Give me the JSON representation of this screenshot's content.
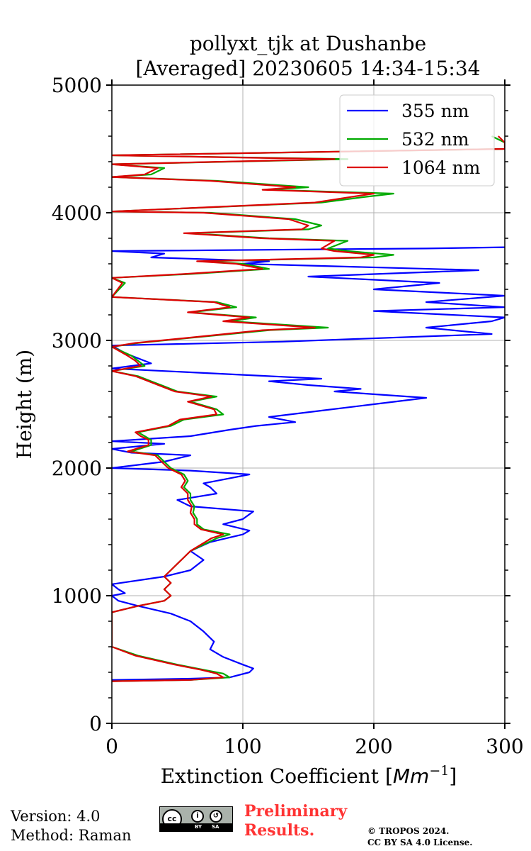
{
  "chart_data": {
    "type": "line",
    "title_line1": "pollyxt_tjk at Dushanbe",
    "title_line2": "[Averaged] 20230605 14:34-15:34",
    "xlabel_text": "Extinction Coefficient [",
    "xlabel_unit": "Mm",
    "xlabel_exp": "−1",
    "xlabel_close": "]",
    "ylabel": "Height (m)",
    "xlim": [
      0,
      300
    ],
    "ylim": [
      0,
      5000
    ],
    "xticks": [
      0,
      100,
      200,
      300
    ],
    "yticks": [
      0,
      1000,
      2000,
      3000,
      4000,
      5000
    ],
    "grid": true,
    "legend_position": "top-right",
    "series": [
      {
        "name": "355 nm",
        "color": "#0000ff",
        "points": [
          [
            0,
            340
          ],
          [
            60,
            350
          ],
          [
            90,
            360
          ],
          [
            105,
            400
          ],
          [
            108,
            430
          ],
          [
            100,
            460
          ],
          [
            85,
            520
          ],
          [
            75,
            580
          ],
          [
            78,
            640
          ],
          [
            70,
            720
          ],
          [
            60,
            800
          ],
          [
            45,
            860
          ],
          [
            20,
            920
          ],
          [
            5,
            960
          ],
          [
            0,
            1000
          ],
          [
            10,
            1020
          ],
          [
            5,
            1050
          ],
          [
            0,
            1090
          ],
          [
            40,
            1150
          ],
          [
            60,
            1200
          ],
          [
            70,
            1280
          ],
          [
            60,
            1350
          ],
          [
            75,
            1420
          ],
          [
            100,
            1480
          ],
          [
            105,
            1510
          ],
          [
            85,
            1560
          ],
          [
            100,
            1600
          ],
          [
            108,
            1660
          ],
          [
            60,
            1700
          ],
          [
            50,
            1750
          ],
          [
            80,
            1800
          ],
          [
            75,
            1850
          ],
          [
            70,
            1880
          ],
          [
            90,
            1920
          ],
          [
            105,
            1950
          ],
          [
            60,
            1980
          ],
          [
            0,
            2000
          ],
          [
            40,
            2050
          ],
          [
            60,
            2100
          ],
          [
            15,
            2120
          ],
          [
            0,
            2150
          ],
          [
            20,
            2170
          ],
          [
            40,
            2190
          ],
          [
            0,
            2210
          ],
          [
            60,
            2250
          ],
          [
            90,
            2300
          ],
          [
            110,
            2330
          ],
          [
            140,
            2360
          ],
          [
            120,
            2400
          ],
          [
            160,
            2450
          ],
          [
            200,
            2500
          ],
          [
            240,
            2550
          ],
          [
            170,
            2600
          ],
          [
            190,
            2620
          ],
          [
            150,
            2650
          ],
          [
            120,
            2680
          ],
          [
            160,
            2700
          ],
          [
            40,
            2760
          ],
          [
            0,
            2780
          ],
          [
            30,
            2820
          ],
          [
            10,
            2900
          ],
          [
            0,
            2960
          ],
          [
            130,
            2990
          ],
          [
            290,
            3050
          ],
          [
            240,
            3100
          ],
          [
            290,
            3150
          ],
          [
            300,
            3180
          ],
          [
            200,
            3230
          ],
          [
            300,
            3260
          ],
          [
            240,
            3300
          ],
          [
            300,
            3350
          ],
          [
            200,
            3400
          ],
          [
            250,
            3450
          ],
          [
            150,
            3500
          ],
          [
            280,
            3550
          ],
          [
            100,
            3600
          ],
          [
            120,
            3620
          ],
          [
            30,
            3650
          ],
          [
            40,
            3680
          ],
          [
            0,
            3700
          ],
          [
            240,
            3720
          ],
          [
            300,
            3730
          ]
        ]
      },
      {
        "name": "532 nm",
        "color": "#00aa00",
        "points": [
          [
            0,
            330
          ],
          [
            60,
            340
          ],
          [
            90,
            360
          ],
          [
            85,
            390
          ],
          [
            70,
            420
          ],
          [
            50,
            460
          ],
          [
            20,
            530
          ],
          [
            0,
            600
          ],
          [
            0,
            870
          ],
          [
            20,
            920
          ],
          [
            40,
            960
          ],
          [
            45,
            1000
          ],
          [
            40,
            1050
          ],
          [
            45,
            1100
          ],
          [
            40,
            1150
          ],
          [
            45,
            1200
          ],
          [
            50,
            1250
          ],
          [
            55,
            1300
          ],
          [
            60,
            1350
          ],
          [
            70,
            1400
          ],
          [
            80,
            1450
          ],
          [
            90,
            1480
          ],
          [
            70,
            1520
          ],
          [
            65,
            1560
          ],
          [
            65,
            1600
          ],
          [
            62,
            1650
          ],
          [
            63,
            1700
          ],
          [
            60,
            1750
          ],
          [
            60,
            1800
          ],
          [
            55,
            1850
          ],
          [
            58,
            1900
          ],
          [
            55,
            1950
          ],
          [
            45,
            2000
          ],
          [
            40,
            2050
          ],
          [
            35,
            2100
          ],
          [
            15,
            2130
          ],
          [
            30,
            2180
          ],
          [
            30,
            2220
          ],
          [
            25,
            2250
          ],
          [
            20,
            2280
          ],
          [
            45,
            2330
          ],
          [
            55,
            2380
          ],
          [
            85,
            2420
          ],
          [
            80,
            2460
          ],
          [
            60,
            2520
          ],
          [
            80,
            2560
          ],
          [
            50,
            2600
          ],
          [
            40,
            2640
          ],
          [
            30,
            2680
          ],
          [
            20,
            2720
          ],
          [
            0,
            2760
          ],
          [
            25,
            2800
          ],
          [
            20,
            2840
          ],
          [
            15,
            2880
          ],
          [
            0,
            2950
          ],
          [
            20,
            2980
          ],
          [
            60,
            3020
          ],
          [
            120,
            3080
          ],
          [
            165,
            3100
          ],
          [
            90,
            3150
          ],
          [
            110,
            3180
          ],
          [
            60,
            3220
          ],
          [
            95,
            3260
          ],
          [
            80,
            3300
          ],
          [
            0,
            3340
          ],
          [
            10,
            3450
          ],
          [
            0,
            3490
          ],
          [
            60,
            3520
          ],
          [
            120,
            3560
          ],
          [
            100,
            3600
          ],
          [
            70,
            3620
          ],
          [
            200,
            3650
          ],
          [
            215,
            3670
          ],
          [
            180,
            3700
          ],
          [
            165,
            3720
          ],
          [
            180,
            3780
          ],
          [
            120,
            3800
          ],
          [
            60,
            3840
          ],
          [
            150,
            3870
          ],
          [
            160,
            3900
          ],
          [
            140,
            3950
          ],
          [
            75,
            4000
          ],
          [
            0,
            4010
          ],
          [
            160,
            4080
          ],
          [
            190,
            4120
          ],
          [
            215,
            4150
          ],
          [
            120,
            4180
          ],
          [
            150,
            4200
          ],
          [
            80,
            4250
          ],
          [
            0,
            4280
          ],
          [
            30,
            4300
          ],
          [
            40,
            4350
          ],
          [
            0,
            4380
          ],
          [
            180,
            4420
          ],
          [
            0,
            4450
          ],
          [
            300,
            4500
          ],
          [
            300,
            4550
          ],
          [
            290,
            4600
          ]
        ]
      },
      {
        "name": "1064 nm",
        "color": "#dd0000",
        "points": [
          [
            0,
            330
          ],
          [
            60,
            340
          ],
          [
            85,
            360
          ],
          [
            80,
            390
          ],
          [
            68,
            420
          ],
          [
            48,
            460
          ],
          [
            18,
            530
          ],
          [
            0,
            600
          ],
          [
            0,
            870
          ],
          [
            20,
            920
          ],
          [
            40,
            960
          ],
          [
            45,
            1000
          ],
          [
            40,
            1050
          ],
          [
            45,
            1100
          ],
          [
            40,
            1150
          ],
          [
            45,
            1200
          ],
          [
            50,
            1250
          ],
          [
            55,
            1300
          ],
          [
            60,
            1350
          ],
          [
            68,
            1400
          ],
          [
            76,
            1450
          ],
          [
            85,
            1480
          ],
          [
            68,
            1520
          ],
          [
            63,
            1560
          ],
          [
            63,
            1600
          ],
          [
            60,
            1650
          ],
          [
            61,
            1700
          ],
          [
            58,
            1750
          ],
          [
            58,
            1800
          ],
          [
            53,
            1850
          ],
          [
            56,
            1900
          ],
          [
            53,
            1950
          ],
          [
            43,
            2000
          ],
          [
            38,
            2050
          ],
          [
            33,
            2100
          ],
          [
            12,
            2130
          ],
          [
            28,
            2180
          ],
          [
            28,
            2220
          ],
          [
            22,
            2250
          ],
          [
            18,
            2280
          ],
          [
            43,
            2330
          ],
          [
            52,
            2380
          ],
          [
            80,
            2420
          ],
          [
            78,
            2460
          ],
          [
            58,
            2520
          ],
          [
            76,
            2560
          ],
          [
            48,
            2600
          ],
          [
            38,
            2640
          ],
          [
            28,
            2680
          ],
          [
            18,
            2720
          ],
          [
            0,
            2760
          ],
          [
            22,
            2800
          ],
          [
            18,
            2840
          ],
          [
            12,
            2880
          ],
          [
            0,
            2950
          ],
          [
            18,
            2980
          ],
          [
            58,
            3020
          ],
          [
            115,
            3080
          ],
          [
            155,
            3100
          ],
          [
            85,
            3150
          ],
          [
            105,
            3180
          ],
          [
            58,
            3220
          ],
          [
            90,
            3260
          ],
          [
            78,
            3300
          ],
          [
            0,
            3340
          ],
          [
            8,
            3450
          ],
          [
            0,
            3490
          ],
          [
            55,
            3520
          ],
          [
            115,
            3560
          ],
          [
            95,
            3600
          ],
          [
            65,
            3620
          ],
          [
            190,
            3650
          ],
          [
            200,
            3670
          ],
          [
            170,
            3700
          ],
          [
            160,
            3720
          ],
          [
            170,
            3780
          ],
          [
            115,
            3800
          ],
          [
            55,
            3840
          ],
          [
            145,
            3870
          ],
          [
            150,
            3900
          ],
          [
            135,
            3950
          ],
          [
            70,
            4000
          ],
          [
            0,
            4010
          ],
          [
            155,
            4080
          ],
          [
            180,
            4120
          ],
          [
            200,
            4150
          ],
          [
            115,
            4180
          ],
          [
            140,
            4200
          ],
          [
            75,
            4250
          ],
          [
            0,
            4280
          ],
          [
            25,
            4300
          ],
          [
            35,
            4350
          ],
          [
            0,
            4380
          ],
          [
            170,
            4420
          ],
          [
            0,
            4450
          ],
          [
            300,
            4500
          ],
          [
            300,
            4550
          ],
          [
            295,
            4600
          ]
        ]
      }
    ]
  },
  "footer": {
    "version": "Version: 4.0",
    "method": "Method: Raman",
    "prelim_line1": "Preliminary",
    "prelim_line2": "Results.",
    "copyright_line1": "© TROPOS 2024.",
    "copyright_line2": "CC BY SA 4.0 License.",
    "license_by": "BY",
    "license_sa": "SA"
  }
}
